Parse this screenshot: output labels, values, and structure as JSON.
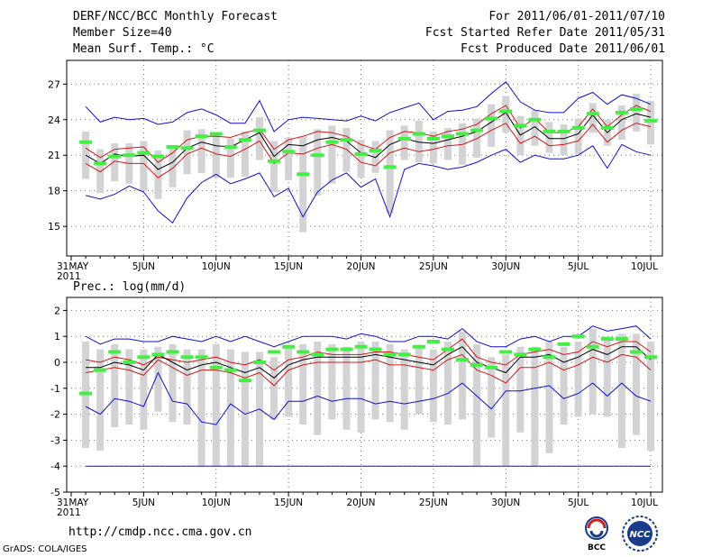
{
  "header": {
    "title": "DERF/NCC/BCC Monthly Forecast",
    "member": "Member Size=40",
    "variable": "Mean Surf. Temp.: °C",
    "period": "For 2011/06/01-2011/07/10",
    "started": "Fcst Started Refer Date 2011/05/31",
    "produced": "Fcst Produced Date 2011/06/01"
  },
  "footer": {
    "url": "http://cmdp.ncc.cma.gov.cn",
    "grads": "GrADS: COLA/IGES",
    "logo_left": "BCC",
    "logo_right": "NCC"
  },
  "colors": {
    "box": "#d3d3d6",
    "obs": "#44ee44",
    "mean": "#000000",
    "spread": "#d01818",
    "envelope": "#1010cc"
  },
  "chart_data": [
    {
      "type": "line",
      "title": "Mean Surf. Temp.: °C",
      "x": [
        0,
        1,
        2,
        3,
        4,
        5,
        6,
        7,
        8,
        9,
        10,
        11,
        12,
        13,
        14,
        15,
        16,
        17,
        18,
        19,
        20,
        21,
        22,
        23,
        24,
        25,
        26,
        27,
        28,
        29,
        30,
        31,
        32,
        33,
        34,
        35,
        36,
        37,
        38,
        39,
        40
      ],
      "x_tick_labels": [
        "31MAY\n2011",
        "5JUN",
        "10JUN",
        "15JUN",
        "20JUN",
        "25JUN",
        "30JUN",
        "5JUL",
        "10JUL"
      ],
      "x_tick_days": [
        0,
        5,
        10,
        15,
        20,
        25,
        30,
        35,
        40
      ],
      "ylim": [
        12.5,
        29
      ],
      "y_ticks": [
        15,
        18,
        21,
        24,
        27
      ],
      "grid": true,
      "series": [
        {
          "name": "max",
          "values": [
            null,
            25.1,
            23.8,
            24.2,
            24.0,
            24.1,
            23.6,
            23.8,
            24.6,
            24.9,
            24.4,
            23.7,
            23.7,
            25.6,
            23.0,
            24.0,
            24.2,
            24.1,
            24.0,
            23.9,
            24.3,
            23.9,
            24.6,
            25.0,
            25.4,
            24.0,
            24.7,
            24.8,
            25.1,
            26.2,
            27.2,
            25.5,
            24.8,
            24.6,
            24.6,
            25.8,
            26.3,
            25.3,
            26.1,
            25.8,
            25.3
          ]
        },
        {
          "name": "upper",
          "values": [
            null,
            21.6,
            20.8,
            21.5,
            21.6,
            21.7,
            20.4,
            21.2,
            22.3,
            22.6,
            22.6,
            22.5,
            22.9,
            23.2,
            21.5,
            22.3,
            22.6,
            23.0,
            22.9,
            22.6,
            21.9,
            21.5,
            22.5,
            23.0,
            22.9,
            22.6,
            23.0,
            23.2,
            23.6,
            24.5,
            25.2,
            23.3,
            24.1,
            22.9,
            22.9,
            23.4,
            24.9,
            23.4,
            24.4,
            25.2,
            24.7
          ]
        },
        {
          "name": "mean",
          "values": [
            null,
            21.0,
            20.3,
            21.1,
            20.9,
            21.0,
            19.8,
            20.4,
            21.6,
            22.1,
            21.8,
            21.7,
            22.3,
            22.9,
            20.9,
            21.9,
            21.8,
            22.3,
            22.5,
            22.2,
            21.2,
            20.8,
            21.9,
            22.4,
            22.1,
            22.0,
            22.3,
            22.6,
            23.0,
            23.8,
            24.6,
            22.7,
            23.4,
            22.4,
            22.4,
            22.8,
            24.4,
            22.9,
            24.0,
            24.5,
            24.2
          ]
        },
        {
          "name": "lower",
          "values": [
            null,
            20.3,
            19.6,
            20.5,
            20.3,
            20.3,
            19.1,
            19.9,
            21.1,
            21.6,
            21.1,
            20.9,
            21.5,
            22.2,
            20.3,
            21.2,
            21.1,
            21.6,
            21.9,
            21.5,
            20.4,
            20.1,
            21.2,
            21.6,
            21.3,
            21.5,
            21.8,
            21.9,
            22.4,
            23.1,
            23.7,
            22.0,
            22.6,
            21.8,
            21.9,
            22.2,
            23.6,
            22.1,
            23.1,
            23.7,
            23.4
          ]
        },
        {
          "name": "min",
          "values": [
            null,
            17.6,
            17.3,
            17.7,
            18.4,
            17.9,
            16.3,
            15.3,
            17.4,
            18.7,
            19.4,
            18.6,
            19.0,
            19.5,
            17.5,
            18.2,
            15.8,
            17.9,
            18.9,
            19.5,
            18.3,
            19.0,
            15.8,
            19.8,
            20.3,
            20.1,
            19.8,
            20.0,
            20.4,
            21.0,
            21.5,
            20.4,
            21.0,
            20.7,
            20.7,
            21.0,
            21.8,
            19.9,
            21.9,
            21.3,
            21.0
          ]
        },
        {
          "name": "box_top",
          "values": [
            null,
            23.0,
            21.5,
            22.0,
            22.0,
            22.2,
            21.4,
            21.6,
            23.1,
            23.2,
            22.8,
            22.4,
            23.0,
            24.2,
            22.2,
            22.5,
            22.6,
            23.2,
            23.5,
            23.3,
            22.3,
            22.2,
            23.1,
            23.5,
            23.9,
            23.0,
            23.3,
            23.7,
            24.1,
            25.3,
            26.0,
            24.3,
            24.8,
            23.8,
            23.6,
            24.1,
            25.4,
            24.0,
            25.2,
            26.2,
            25.6
          ]
        },
        {
          "name": "box_bottom",
          "values": [
            null,
            19.0,
            17.8,
            18.8,
            18.6,
            18.0,
            17.3,
            18.3,
            19.4,
            19.5,
            19.1,
            19.1,
            19.2,
            20.6,
            17.9,
            18.9,
            14.5,
            17.6,
            18.6,
            19.6,
            19.1,
            19.5,
            16.1,
            20.6,
            20.4,
            20.3,
            20.6,
            20.2,
            20.8,
            21.7,
            22.9,
            21.0,
            21.8,
            21.2,
            21.0,
            21.1,
            22.9,
            21.8,
            22.3,
            23.0,
            21.9
          ]
        },
        {
          "name": "observed",
          "values": [
            null,
            22.1,
            20.3,
            20.9,
            21.0,
            21.2,
            20.9,
            21.7,
            21.6,
            22.6,
            22.8,
            21.7,
            22.3,
            23.1,
            20.5,
            21.3,
            19.4,
            21.0,
            22.1,
            22.3,
            21.1,
            21.4,
            20.0,
            22.4,
            22.8,
            22.4,
            22.6,
            22.8,
            23.1,
            24.1,
            24.7,
            23.5,
            24.0,
            23.0,
            23.0,
            23.3,
            24.5,
            23.3,
            24.6,
            24.9,
            23.9
          ]
        }
      ]
    },
    {
      "type": "line",
      "title": "Prec.: log(mm/d)",
      "x": [
        0,
        1,
        2,
        3,
        4,
        5,
        6,
        7,
        8,
        9,
        10,
        11,
        12,
        13,
        14,
        15,
        16,
        17,
        18,
        19,
        20,
        21,
        22,
        23,
        24,
        25,
        26,
        27,
        28,
        29,
        30,
        31,
        32,
        33,
        34,
        35,
        36,
        37,
        38,
        39,
        40
      ],
      "x_tick_labels": [
        "31MAY\n2011",
        "5JUN",
        "10JUN",
        "15JUN",
        "20JUN",
        "25JUN",
        "30JUN",
        "5JUL",
        "10JUL"
      ],
      "x_tick_days": [
        0,
        5,
        10,
        15,
        20,
        25,
        30,
        35,
        40
      ],
      "ylim": [
        -5,
        2.5
      ],
      "y_ticks": [
        -5,
        -4,
        -3,
        -2,
        -1,
        0,
        1,
        2
      ],
      "grid": true,
      "series": [
        {
          "name": "max",
          "values": [
            null,
            1.0,
            0.7,
            0.9,
            0.9,
            0.8,
            0.8,
            1.0,
            0.9,
            0.8,
            1.0,
            0.8,
            1.0,
            0.8,
            0.6,
            0.8,
            1.0,
            1.0,
            1.0,
            0.9,
            1.1,
            1.0,
            0.8,
            0.8,
            1.0,
            1.0,
            0.9,
            1.3,
            0.8,
            0.6,
            0.6,
            0.9,
            1.0,
            0.8,
            1.0,
            1.0,
            1.4,
            1.2,
            1.3,
            1.4,
            0.9
          ]
        },
        {
          "name": "upper",
          "values": [
            null,
            0.1,
            0.0,
            0.2,
            0.1,
            -0.1,
            0.2,
            0.1,
            0.0,
            0.1,
            0.2,
            0.0,
            -0.1,
            0.1,
            -0.3,
            0.1,
            0.2,
            0.4,
            0.3,
            0.3,
            0.3,
            0.4,
            0.4,
            0.3,
            0.2,
            0.1,
            0.5,
            0.9,
            0.2,
            0.0,
            -0.1,
            0.3,
            0.4,
            0.5,
            0.3,
            0.4,
            0.8,
            0.6,
            0.8,
            0.8,
            0.4
          ]
        },
        {
          "name": "mean",
          "values": [
            null,
            -0.2,
            -0.2,
            0.0,
            -0.1,
            -0.3,
            0.3,
            0.0,
            -0.3,
            -0.1,
            0.0,
            -0.2,
            -0.4,
            -0.2,
            -0.6,
            -0.1,
            0.1,
            0.2,
            0.2,
            0.2,
            0.2,
            0.3,
            0.2,
            0.1,
            0.0,
            -0.1,
            0.3,
            0.6,
            0.0,
            -0.2,
            -0.4,
            0.2,
            0.2,
            0.3,
            0.0,
            0.2,
            0.5,
            0.3,
            0.6,
            0.6,
            0.1
          ]
        },
        {
          "name": "lower",
          "values": [
            null,
            -0.4,
            -0.3,
            -0.2,
            -0.3,
            -0.5,
            0.1,
            -0.2,
            -0.5,
            -0.3,
            -0.3,
            -0.4,
            -0.6,
            -0.4,
            -0.9,
            -0.3,
            -0.1,
            0.0,
            0.0,
            0.0,
            0.0,
            0.1,
            -0.1,
            -0.1,
            -0.2,
            -0.3,
            0.1,
            0.3,
            -0.3,
            -0.5,
            -0.8,
            -0.2,
            -0.2,
            0.0,
            -0.3,
            -0.1,
            0.2,
            0.0,
            0.3,
            0.2,
            -0.3
          ]
        },
        {
          "name": "min",
          "values": [
            null,
            -1.7,
            -2.0,
            -1.4,
            -1.5,
            -1.7,
            -0.4,
            -1.5,
            -1.6,
            -2.3,
            -2.4,
            -1.6,
            -2.0,
            -1.8,
            -2.2,
            -1.5,
            -1.5,
            -1.3,
            -1.5,
            -1.4,
            -1.4,
            -1.6,
            -1.5,
            -1.6,
            -1.5,
            -1.4,
            -1.2,
            -0.8,
            -1.3,
            -1.8,
            -1.1,
            -1.1,
            -1.0,
            -0.9,
            -1.4,
            -1.2,
            -0.8,
            -1.3,
            -0.8,
            -1.3,
            -1.5
          ]
        },
        {
          "name": "floor",
          "values": [
            null,
            -4.0,
            -4.0,
            -4.0,
            -4.0,
            -4.0,
            -4.0,
            -4.0,
            -4.0,
            -4.0,
            -4.0,
            -4.0,
            -4.0,
            -4.0,
            -4.0,
            -4.0,
            -4.0,
            -4.0,
            -4.0,
            -4.0,
            -4.0,
            -4.0,
            -4.0,
            -4.0,
            -4.0,
            -4.0,
            -4.0,
            -4.0,
            -4.0,
            -4.0,
            -4.0,
            -4.0,
            -4.0,
            -4.0,
            -4.0,
            -4.0,
            -4.0,
            -4.0,
            -4.0,
            -4.0,
            -4.0
          ]
        },
        {
          "name": "box_top",
          "values": [
            null,
            0.8,
            0.5,
            0.7,
            0.5,
            0.5,
            0.6,
            0.7,
            0.5,
            0.5,
            0.7,
            0.5,
            0.4,
            0.4,
            0.2,
            0.6,
            0.7,
            0.8,
            0.7,
            0.6,
            0.8,
            0.8,
            0.7,
            0.5,
            0.6,
            0.5,
            0.8,
            1.2,
            0.7,
            0.2,
            0.3,
            0.6,
            0.6,
            0.8,
            0.6,
            0.8,
            1.3,
            1.0,
            1.1,
            1.1,
            0.8
          ]
        },
        {
          "name": "box_bottom",
          "values": [
            null,
            -3.3,
            -3.4,
            -2.5,
            -2.4,
            -2.6,
            -1.9,
            -2.3,
            -2.4,
            -4.0,
            -4.0,
            -4.0,
            -4.0,
            -4.0,
            -2.2,
            -2.1,
            -2.4,
            -2.8,
            -2.2,
            -2.6,
            -2.7,
            -2.2,
            -2.3,
            -2.6,
            -2.0,
            -2.3,
            -2.4,
            -2.2,
            -4.0,
            -2.9,
            -4.0,
            -2.7,
            -4.0,
            -3.5,
            -2.4,
            -2.1,
            -2.0,
            -2.1,
            -3.3,
            -2.8,
            -3.4
          ]
        },
        {
          "name": "observed",
          "values": [
            null,
            -1.2,
            -0.3,
            0.4,
            0.0,
            0.2,
            0.3,
            0.4,
            0.2,
            0.2,
            -0.2,
            -0.3,
            -0.7,
            0.0,
            0.4,
            0.6,
            0.4,
            0.3,
            0.5,
            0.5,
            0.6,
            0.5,
            0.3,
            0.3,
            0.6,
            0.8,
            0.5,
            0.1,
            -0.1,
            -0.2,
            0.4,
            0.3,
            0.5,
            0.2,
            0.7,
            1.0,
            0.6,
            0.9,
            0.9,
            0.4,
            0.2
          ]
        }
      ]
    }
  ]
}
